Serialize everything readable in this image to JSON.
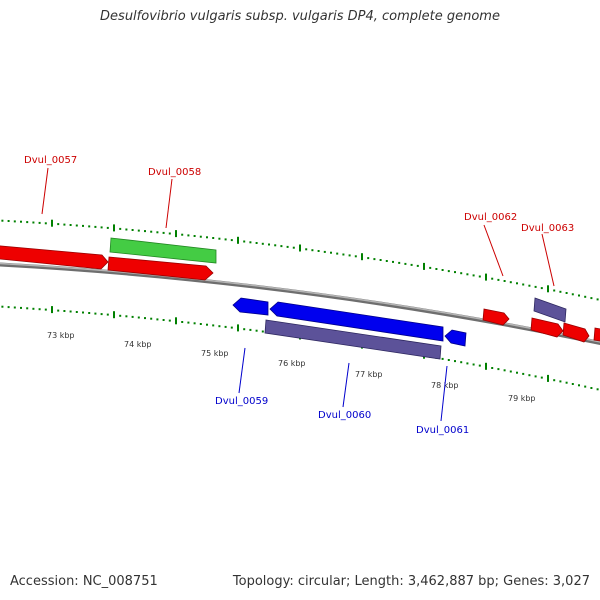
{
  "title": "Desulfovibrio vulgaris subsp. vulgaris DP4, complete genome",
  "footer": {
    "accession": "Accession: NC_008751",
    "topology": "Topology: circular; Length: 3,462,887 bp; Genes: 3,027"
  },
  "colors": {
    "forward_gene": "#ff0000",
    "reverse_gene": "#0000ff",
    "rna_or_other": "#33cc33",
    "hypothetical": "#5a4f9a",
    "backbone": "#888888",
    "ticks": "#008000",
    "forward_label": "#cc0000",
    "reverse_label": "#0000cc"
  },
  "scale": {
    "unit": "kbp",
    "tick_labels": [
      "73 kbp",
      "74 kbp",
      "75 kbp",
      "76 kbp",
      "77 kbp",
      "78 kbp",
      "79 kbp"
    ]
  },
  "gene_labels": {
    "forward": [
      "Dvul_0057",
      "Dvul_0058",
      "Dvul_0062",
      "Dvul_0063"
    ],
    "reverse": [
      "Dvul_0059",
      "Dvul_0060",
      "Dvul_0061"
    ]
  }
}
